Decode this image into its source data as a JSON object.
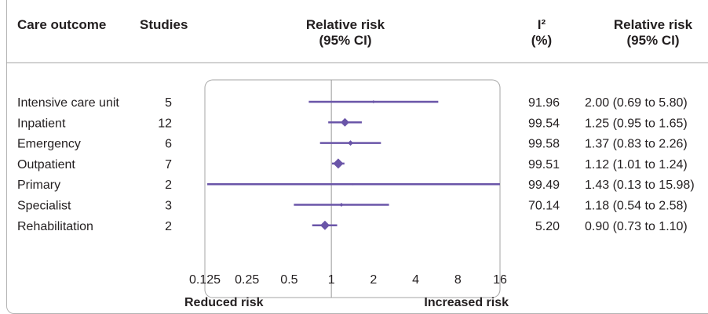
{
  "header": {
    "outcome": "Care outcome",
    "studies": "Studies",
    "rr_title": "Relative risk",
    "rr_ci": "(95% CI)",
    "i2_title": "I²",
    "i2_unit": "(%)",
    "rr2_title": "Relative risk",
    "rr2_ci": "(95% CI)"
  },
  "colors": {
    "marker": "#6a55a8",
    "line": "#231f20",
    "box": "#a6a6a6"
  },
  "chart_data": {
    "type": "forest",
    "x_scale": "log2",
    "xlim": [
      0.125,
      16
    ],
    "reference_line": 1,
    "ticks": [
      {
        "v": 0.125,
        "label": "0.125"
      },
      {
        "v": 0.25,
        "label": "0.25"
      },
      {
        "v": 0.5,
        "label": "0.5"
      },
      {
        "v": 1,
        "label": "1"
      },
      {
        "v": 2,
        "label": "2"
      },
      {
        "v": 4,
        "label": "4"
      },
      {
        "v": 8,
        "label": "8"
      },
      {
        "v": 16,
        "label": "16"
      }
    ],
    "xlabel_left": "Reduced risk",
    "xlabel_right": "Increased risk",
    "rows": [
      {
        "outcome": "Intensive care unit",
        "studies": "5",
        "rr": 2.0,
        "lo": 0.69,
        "hi": 5.8,
        "size": 3,
        "i2": "91.96",
        "ci_text": "2.00 (0.69 to 5.80)"
      },
      {
        "outcome": "Inpatient",
        "studies": "12",
        "rr": 1.25,
        "lo": 0.95,
        "hi": 1.65,
        "size": 10,
        "i2": "99.54",
        "ci_text": "1.25 (0.95 to 1.65)"
      },
      {
        "outcome": "Emergency",
        "studies": "6",
        "rr": 1.37,
        "lo": 0.83,
        "hi": 2.26,
        "size": 6,
        "i2": "99.58",
        "ci_text": "1.37 (0.83 to 2.26)"
      },
      {
        "outcome": "Outpatient",
        "studies": "7",
        "rr": 1.12,
        "lo": 1.01,
        "hi": 1.24,
        "size": 12,
        "i2": "99.51",
        "ci_text": "1.12 (1.01 to 1.24)"
      },
      {
        "outcome": "Primary",
        "studies": "2",
        "rr": 1.43,
        "lo": 0.13,
        "hi": 15.98,
        "size": 2,
        "i2": "99.49",
        "ci_text": "1.43 (0.13 to 15.98)"
      },
      {
        "outcome": "Specialist",
        "studies": "3",
        "rr": 1.18,
        "lo": 0.54,
        "hi": 2.58,
        "size": 4,
        "i2": "70.14",
        "ci_text": "1.18 (0.54 to 2.58)"
      },
      {
        "outcome": "Rehabilitation",
        "studies": "2",
        "rr": 0.9,
        "lo": 0.73,
        "hi": 1.1,
        "size": 11,
        "i2": "5.20",
        "ci_text": "0.90 (0.73 to 1.10)"
      }
    ]
  }
}
